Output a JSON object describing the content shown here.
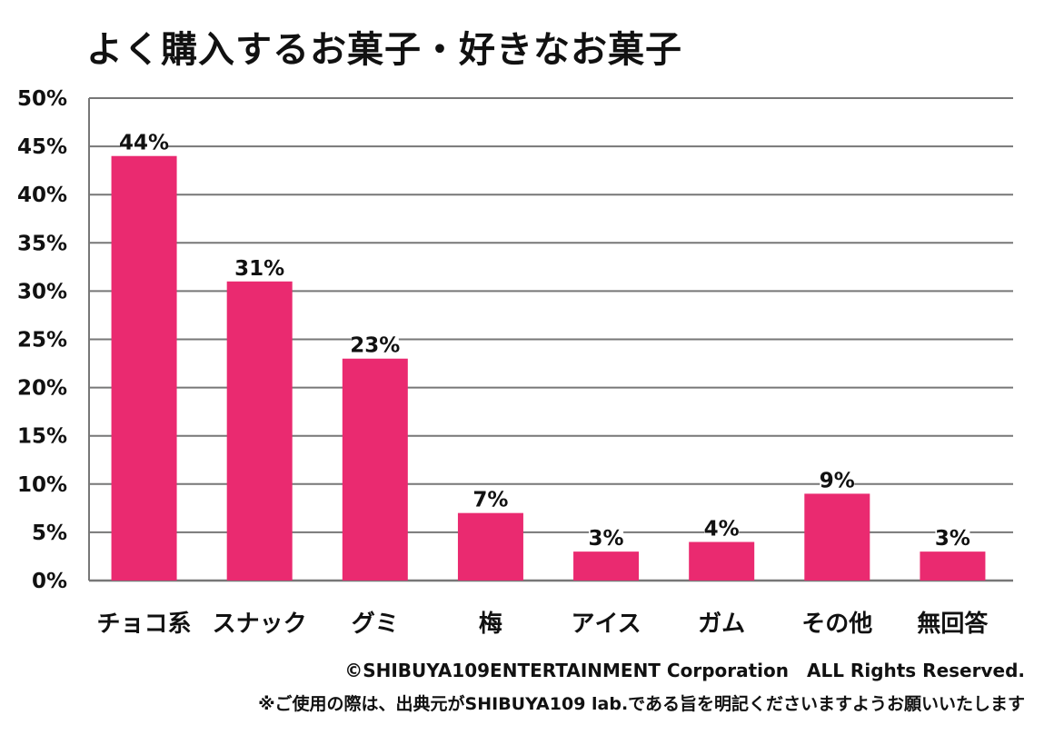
{
  "chart_data": {
    "type": "bar",
    "title": "よく購入するお菓子・好きなお菓子",
    "categories": [
      "チョコ系",
      "スナック",
      "グミ",
      "梅",
      "アイス",
      "ガム",
      "その他",
      "無回答"
    ],
    "values": [
      44,
      31,
      23,
      7,
      3,
      4,
      9,
      3
    ],
    "data_labels": [
      "44%",
      "31%",
      "23%",
      "7%",
      "3%",
      "4%",
      "9%",
      "3%"
    ],
    "ylim": [
      0,
      50
    ],
    "y_ticks": [
      0,
      5,
      10,
      15,
      20,
      25,
      30,
      35,
      40,
      45,
      50
    ],
    "y_tick_labels": [
      "0%",
      "5%",
      "10%",
      "15%",
      "20%",
      "25%",
      "30%",
      "35%",
      "40%",
      "45%",
      "50%"
    ],
    "xlabel": "",
    "ylabel": "",
    "grid": true,
    "legend": "none",
    "bar_color": "#ea2a70",
    "grid_color": "#777777"
  },
  "footer": {
    "copyright": "©SHIBUYA109ENTERTAINMENT Corporation　ALL Rights Reserved.",
    "note": "※ご使用の際は、出典元がSHIBUYA109 lab.である旨を明記くださいますようお願いいたします"
  }
}
